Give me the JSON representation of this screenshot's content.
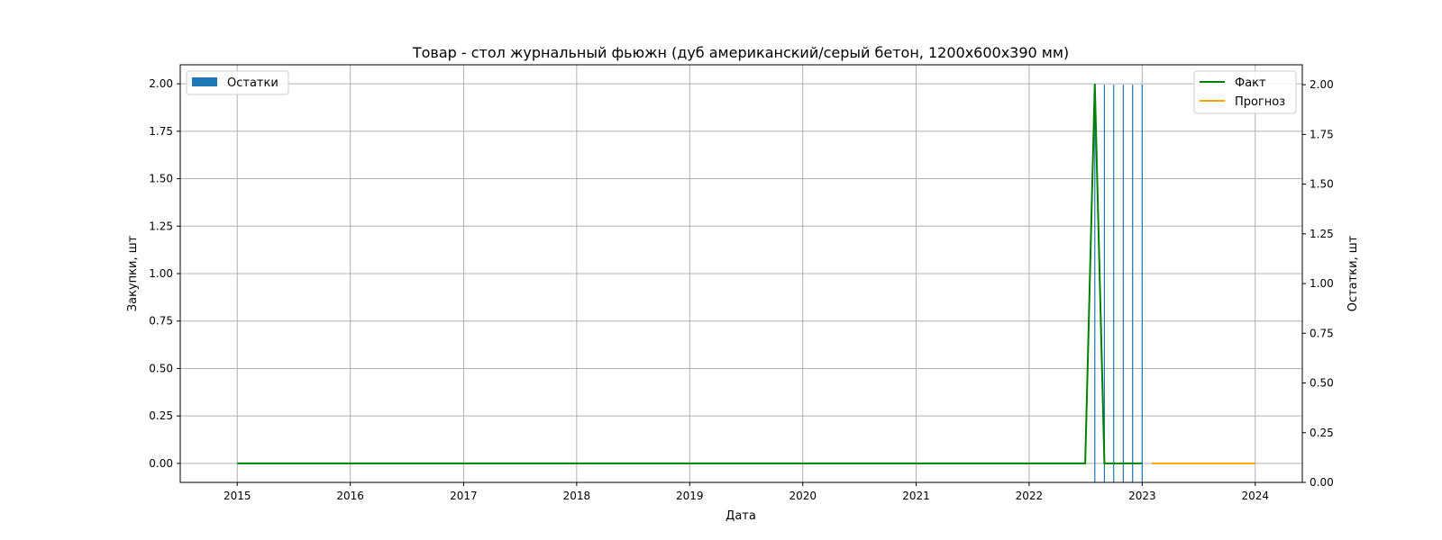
{
  "chart_data": {
    "type": "line",
    "title": "Товар - стол журнальный фьюжн (дуб американский/серый бетон, 1200x600x390 мм)",
    "xlabel": "Дата",
    "ylabel": "Закупки, шт",
    "ylabel_right": "Остатки, шт",
    "grid": true,
    "x_range": [
      "2014-07-01",
      "2024-06-01"
    ],
    "x_ticks": [
      "2015",
      "2016",
      "2017",
      "2018",
      "2019",
      "2020",
      "2021",
      "2022",
      "2023",
      "2024"
    ],
    "y_left_range": [
      -0.1,
      2.1
    ],
    "y_left_ticks": [
      "0.00",
      "0.25",
      "0.50",
      "0.75",
      "1.00",
      "1.25",
      "1.50",
      "1.75",
      "2.00"
    ],
    "y_right_range": [
      0,
      2.1
    ],
    "y_right_ticks": [
      "0.00",
      "0.25",
      "0.50",
      "0.75",
      "1.00",
      "1.25",
      "1.50",
      "1.75",
      "2.00"
    ],
    "legend_left": {
      "placement": "upper-left",
      "items": [
        "Остатки"
      ]
    },
    "legend_right": {
      "placement": "upper-right",
      "items": [
        "Факт",
        "Прогноз"
      ]
    },
    "series": [
      {
        "name": "Факт",
        "axis": "left",
        "kind": "line",
        "color": "#008000",
        "points": [
          [
            "2015-01-01",
            0
          ],
          [
            "2022-07-01",
            0
          ],
          [
            "2022-08-01",
            2
          ],
          [
            "2022-09-01",
            0
          ],
          [
            "2022-10-01",
            0
          ],
          [
            "2022-11-01",
            0
          ],
          [
            "2022-12-01",
            0
          ],
          [
            "2023-01-01",
            0
          ]
        ]
      },
      {
        "name": "Прогноз",
        "axis": "left",
        "kind": "line",
        "color": "#FFA500",
        "points": [
          [
            "2023-02-01",
            0
          ],
          [
            "2024-01-01",
            0
          ]
        ]
      },
      {
        "name": "Остатки",
        "axis": "right",
        "kind": "bar",
        "color": "#1f77b4",
        "points": [
          [
            "2022-08-01",
            2
          ],
          [
            "2022-09-01",
            2
          ],
          [
            "2022-10-01",
            2
          ],
          [
            "2022-11-01",
            2
          ],
          [
            "2022-12-01",
            2
          ],
          [
            "2023-01-01",
            2
          ]
        ]
      }
    ]
  }
}
